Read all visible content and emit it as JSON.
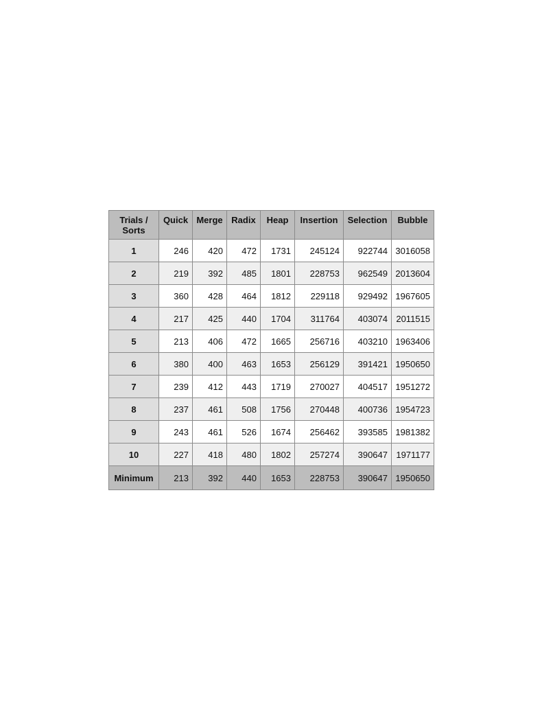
{
  "table": {
    "corner_label": "Trials / Sorts",
    "columns": [
      "Quick",
      "Merge",
      "Radix",
      "Heap",
      "Insertion",
      "Selection",
      "Bubble"
    ],
    "rows": [
      {
        "label": "1",
        "values": [
          "246",
          "420",
          "472",
          "1731",
          "245124",
          "922744",
          "3016058"
        ]
      },
      {
        "label": "2",
        "values": [
          "219",
          "392",
          "485",
          "1801",
          "228753",
          "962549",
          "2013604"
        ]
      },
      {
        "label": "3",
        "values": [
          "360",
          "428",
          "464",
          "1812",
          "229118",
          "929492",
          "1967605"
        ]
      },
      {
        "label": "4",
        "values": [
          "217",
          "425",
          "440",
          "1704",
          "311764",
          "403074",
          "2011515"
        ]
      },
      {
        "label": "5",
        "values": [
          "213",
          "406",
          "472",
          "1665",
          "256716",
          "403210",
          "1963406"
        ]
      },
      {
        "label": "6",
        "values": [
          "380",
          "400",
          "463",
          "1653",
          "256129",
          "391421",
          "1950650"
        ]
      },
      {
        "label": "7",
        "values": [
          "239",
          "412",
          "443",
          "1719",
          "270027",
          "404517",
          "1951272"
        ]
      },
      {
        "label": "8",
        "values": [
          "237",
          "461",
          "508",
          "1756",
          "270448",
          "400736",
          "1954723"
        ]
      },
      {
        "label": "9",
        "values": [
          "243",
          "461",
          "526",
          "1674",
          "256462",
          "393585",
          "1981382"
        ]
      },
      {
        "label": "10",
        "values": [
          "227",
          "418",
          "480",
          "1802",
          "257274",
          "390647",
          "1971177"
        ]
      }
    ],
    "footer": {
      "label": "Minimum",
      "values": [
        "213",
        "392",
        "440",
        "1653",
        "228753",
        "390647",
        "1950650"
      ]
    }
  }
}
